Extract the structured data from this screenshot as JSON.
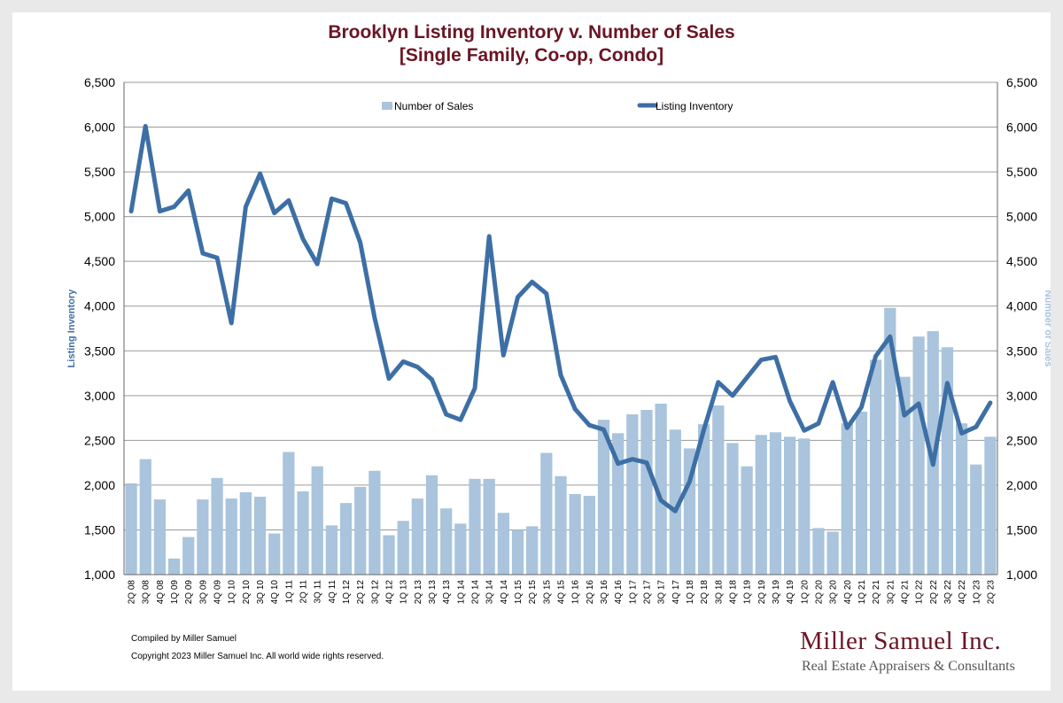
{
  "chart_data": {
    "type": "bar+line",
    "title": "Brooklyn Listing Inventory v. Number of Sales",
    "subtitle": "[Single Family, Co-op, Condo]",
    "y_left_label": "Listing Inventory",
    "y_right_label": "Number of Sales",
    "ylim": [
      1000,
      6500
    ],
    "y_ticks": [
      "1,000",
      "1,500",
      "2,000",
      "2,500",
      "3,000",
      "3,500",
      "4,000",
      "4,500",
      "5,000",
      "5,500",
      "6,000",
      "6,500"
    ],
    "y_tick_values": [
      1000,
      1500,
      2000,
      2500,
      3000,
      3500,
      4000,
      4500,
      5000,
      5500,
      6000,
      6500
    ],
    "grid": true,
    "legend_position": "top",
    "categories": [
      "2Q 08",
      "3Q 08",
      "4Q 08",
      "1Q 09",
      "2Q 09",
      "3Q 09",
      "4Q 09",
      "1Q 10",
      "2Q 10",
      "3Q 10",
      "4Q 10",
      "1Q 11",
      "2Q 11",
      "3Q 11",
      "4Q 11",
      "1Q 12",
      "2Q 12",
      "3Q 12",
      "4Q 12",
      "1Q 13",
      "2Q 13",
      "3Q 13",
      "4Q 13",
      "1Q 14",
      "2Q 14",
      "3Q 14",
      "4Q 14",
      "1Q 15",
      "2Q 15",
      "3Q 15",
      "4Q 15",
      "1Q 16",
      "2Q 16",
      "3Q 16",
      "4Q 16",
      "1Q 17",
      "2Q 17",
      "3Q 17",
      "4Q 17",
      "1Q 18",
      "2Q 18",
      "3Q 18",
      "4Q 18",
      "1Q 19",
      "2Q 19",
      "3Q 19",
      "4Q 19",
      "1Q 20",
      "2Q 20",
      "3Q 20",
      "4Q 20",
      "1Q 21",
      "2Q 21",
      "3Q 21",
      "4Q 21",
      "1Q 22",
      "2Q 22",
      "3Q 22",
      "4Q 22",
      "1Q 23",
      "2Q 23"
    ],
    "series": [
      {
        "name": "Number of Sales",
        "type": "bar",
        "axis": "right",
        "color": "#a9c4dc",
        "values": [
          2020,
          2290,
          1840,
          1180,
          1420,
          1840,
          2080,
          1850,
          1920,
          1870,
          1460,
          2370,
          1930,
          2210,
          1550,
          1800,
          1980,
          2160,
          1440,
          1600,
          1850,
          2110,
          1740,
          1570,
          2070,
          2070,
          1690,
          1500,
          1540,
          2360,
          2100,
          1900,
          1880,
          2730,
          2580,
          2790,
          2840,
          2910,
          2620,
          2410,
          2680,
          2890,
          2470,
          2210,
          2560,
          2590,
          2540,
          2520,
          1520,
          1480,
          2690,
          2820,
          3400,
          3980,
          3210,
          3660,
          3720,
          3540,
          2690,
          2230,
          2540
        ]
      },
      {
        "name": "Listing Inventory",
        "type": "line",
        "axis": "left",
        "color": "#3d6fa5",
        "values": [
          5060,
          6010,
          5060,
          5110,
          5290,
          4590,
          4540,
          3810,
          5110,
          5480,
          5040,
          5180,
          4750,
          4470,
          5200,
          5150,
          4710,
          3870,
          3190,
          3380,
          3320,
          3180,
          2790,
          2730,
          3080,
          4780,
          3450,
          4100,
          4270,
          4140,
          3230,
          2850,
          2670,
          2620,
          2240,
          2290,
          2250,
          1830,
          1710,
          2040,
          2620,
          3150,
          3000,
          3200,
          3400,
          3430,
          2940,
          2610,
          2690,
          3150,
          2640,
          2870,
          3440,
          3660,
          2780,
          2910,
          2230,
          3140,
          2580,
          2650,
          2920
        ]
      }
    ]
  },
  "footer": {
    "compiled": "Compiled by Miller Samuel",
    "copyright": "Copyright 2023 Miller Samuel Inc.  All world wide rights reserved."
  },
  "brand": {
    "name": "Miller Samuel Inc.",
    "tagline": "Real Estate Appraisers & Consultants"
  },
  "colors": {
    "title": "#6b1524",
    "bar": "#a9c4dc",
    "line": "#3d6fa5",
    "axis_label_left": "#3d6fa5",
    "axis_label_right": "#a9c4dc"
  }
}
